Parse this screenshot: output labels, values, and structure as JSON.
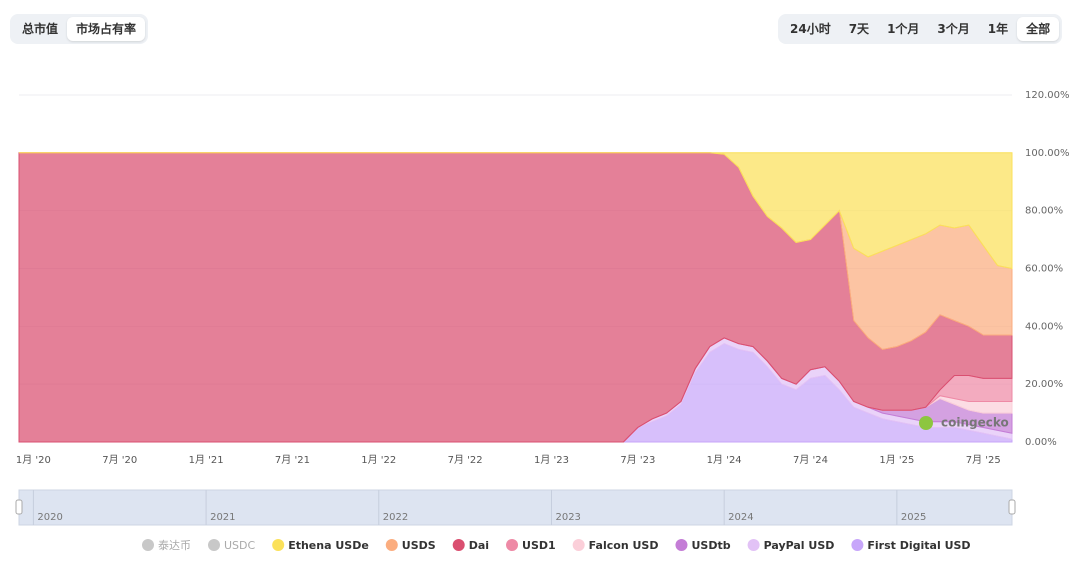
{
  "toolbar": {
    "left": [
      "总市值",
      "市场占有率"
    ],
    "left_selected": 1,
    "right": [
      "24小时",
      "7天",
      "1个月",
      "3个月",
      "1年",
      "全部"
    ],
    "right_selected": 5
  },
  "chart_data": {
    "type": "stacked-area-percent",
    "watermark": "coingecko",
    "x": [
      "2019-12",
      "2020-07",
      "2021-01",
      "2021-07",
      "2022-01",
      "2022-07",
      "2023-01",
      "2023-06",
      "2023-07",
      "2023-08",
      "2023-09",
      "2023-10",
      "2023-11",
      "2023-12",
      "2024-01",
      "2024-02",
      "2024-03",
      "2024-04",
      "2024-05",
      "2024-06",
      "2024-07",
      "2024-08",
      "2024-09",
      "2024-10",
      "2024-11",
      "2024-12",
      "2025-01",
      "2025-02",
      "2025-03",
      "2025-04",
      "2025-05",
      "2025-06",
      "2025-07",
      "2025-08",
      "2025-09"
    ],
    "xlim": [
      "2019-12",
      "2025-09"
    ],
    "xticks": [
      {
        "value": "2020-01",
        "label": "1月 '20"
      },
      {
        "value": "2020-07",
        "label": "7月 '20"
      },
      {
        "value": "2021-01",
        "label": "1月 '21"
      },
      {
        "value": "2021-07",
        "label": "7月 '21"
      },
      {
        "value": "2022-01",
        "label": "1月 '22"
      },
      {
        "value": "2022-07",
        "label": "7月 '22"
      },
      {
        "value": "2023-01",
        "label": "1月 '23"
      },
      {
        "value": "2023-07",
        "label": "7月 '23"
      },
      {
        "value": "2024-01",
        "label": "1月 '24"
      },
      {
        "value": "2024-07",
        "label": "7月 '24"
      },
      {
        "value": "2025-01",
        "label": "1月 '25"
      },
      {
        "value": "2025-07",
        "label": "7月 '25"
      }
    ],
    "ylim": [
      0,
      120
    ],
    "yticks": [
      {
        "value": 0,
        "label": "0.00%"
      },
      {
        "value": 20,
        "label": "20.00%"
      },
      {
        "value": 40,
        "label": "40.00%"
      },
      {
        "value": 60,
        "label": "60.00%"
      },
      {
        "value": 80,
        "label": "80.00%"
      },
      {
        "value": 100,
        "label": "100.00%"
      },
      {
        "value": 120,
        "label": "120.00%"
      }
    ],
    "grid": true,
    "navigator_ticks": [
      {
        "value": "2020-01",
        "label": "2020"
      },
      {
        "value": "2021-01",
        "label": "2021"
      },
      {
        "value": "2022-01",
        "label": "2022"
      },
      {
        "value": "2023-01",
        "label": "2023"
      },
      {
        "value": "2024-01",
        "label": "2024"
      },
      {
        "value": "2025-01",
        "label": "2025"
      }
    ],
    "series": [
      {
        "name": "泰达币",
        "color": "#c4c4c4",
        "visible": false
      },
      {
        "name": "USDC",
        "color": "#c4c4c4",
        "visible": false
      },
      {
        "name": "Ethena USDe",
        "color": "#fbe15a",
        "visible": true,
        "values": [
          0,
          0,
          0,
          0,
          0,
          0,
          0,
          0,
          0,
          0,
          0,
          0,
          0,
          0,
          0.5,
          5,
          15,
          22,
          26,
          31,
          30,
          25,
          20,
          33,
          36,
          34,
          32,
          30,
          28,
          25,
          26,
          25,
          32,
          39,
          40
        ]
      },
      {
        "name": "USDS",
        "color": "#fbad7f",
        "visible": true,
        "values": [
          0,
          0,
          0,
          0,
          0,
          0,
          0,
          0,
          0,
          0,
          0,
          0,
          0,
          0,
          0,
          0,
          0,
          0,
          0,
          0,
          0,
          0,
          0,
          25,
          28,
          34,
          35,
          35,
          34,
          31,
          32,
          35,
          31,
          24,
          23
        ]
      },
      {
        "name": "Dai",
        "color": "#da4f70",
        "visible": true,
        "values": [
          100,
          100,
          100,
          100,
          100,
          100,
          100,
          100,
          95,
          92,
          90,
          86,
          74.5,
          67,
          63.5,
          61,
          52,
          50,
          52,
          49,
          45,
          49,
          59,
          28,
          24,
          21,
          22,
          24,
          26,
          26,
          19,
          17,
          15,
          15,
          15
        ]
      },
      {
        "name": "USD1",
        "color": "#ee8aa6",
        "visible": true,
        "values": [
          0,
          0,
          0,
          0,
          0,
          0,
          0,
          0,
          0,
          0,
          0,
          0,
          0,
          0,
          0,
          0,
          0,
          0,
          0,
          0,
          0,
          0,
          0,
          0,
          0,
          0,
          0,
          0,
          0,
          2,
          8,
          9,
          8,
          8,
          8
        ]
      },
      {
        "name": "Falcon USD",
        "color": "#fbcfd9",
        "visible": true,
        "values": [
          0,
          0,
          0,
          0,
          0,
          0,
          0,
          0,
          0,
          0,
          0,
          0,
          0,
          0,
          0,
          0,
          0,
          0,
          0,
          0,
          0,
          0,
          0,
          0,
          0,
          0,
          0,
          0,
          0,
          1,
          2,
          3,
          4,
          4,
          4
        ]
      },
      {
        "name": "USDtb",
        "color": "#c47dd6",
        "visible": true,
        "values": [
          0,
          0,
          0,
          0,
          0,
          0,
          0,
          0,
          0,
          0,
          0,
          0,
          0,
          0,
          0,
          0,
          0,
          0,
          0,
          0,
          0,
          0,
          0,
          0,
          0,
          1,
          2,
          3,
          5,
          8,
          6,
          5,
          5,
          6,
          7
        ]
      },
      {
        "name": "PayPal USD",
        "color": "#e2c2f6",
        "visible": true,
        "values": [
          0,
          0,
          0,
          0,
          0,
          0,
          0,
          0,
          0,
          1,
          1,
          1,
          1.5,
          2,
          2,
          2,
          2,
          2,
          2,
          2,
          3,
          3,
          3,
          2,
          2,
          2,
          2,
          2,
          2,
          2,
          2,
          2,
          2,
          2,
          2
        ]
      },
      {
        "name": "First Digital USD",
        "color": "#c7a6fa",
        "visible": true,
        "values": [
          0,
          0,
          0,
          0,
          0,
          0,
          0,
          0,
          5,
          7,
          9,
          13,
          24,
          31,
          34,
          32,
          31,
          26,
          20,
          18,
          22,
          23,
          18,
          12,
          10,
          8,
          7,
          6,
          5,
          5,
          5,
          4,
          3,
          2,
          1
        ]
      }
    ]
  }
}
